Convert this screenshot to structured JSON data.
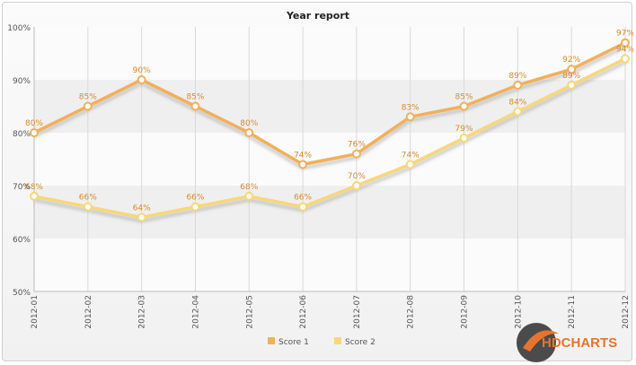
{
  "chart_data": {
    "type": "line",
    "title": "Year report",
    "categories": [
      "2012-01",
      "2012-02",
      "2012-03",
      "2012-04",
      "2012-05",
      "2012-06",
      "2012-07",
      "2012-08",
      "2012-09",
      "2012-10",
      "2012-11",
      "2012-12"
    ],
    "series": [
      {
        "name": "Score 1",
        "values": [
          80,
          85,
          90,
          85,
          80,
          74,
          76,
          83,
          85,
          89,
          92,
          97
        ],
        "color": "#f2b05a",
        "label_color": "#d78a2e"
      },
      {
        "name": "Score 2",
        "values": [
          68,
          66,
          64,
          66,
          68,
          66,
          70,
          74,
          79,
          84,
          89,
          94
        ],
        "color": "#f8d77a",
        "label_color": "#d78a2e"
      }
    ],
    "yticks": [
      "50%",
      "60%",
      "70%",
      "80%",
      "90%",
      "100%"
    ],
    "ylim": [
      50,
      100
    ],
    "value_suffix": "%",
    "grid": true,
    "legend_position": "bottom-center"
  },
  "branding": {
    "logo_prefix": "HD",
    "logo_suffix": "CHARTS"
  },
  "colors": {
    "band_dark": "#efefef",
    "band_light": "#fbfbfb",
    "axis_text": "#555555"
  }
}
